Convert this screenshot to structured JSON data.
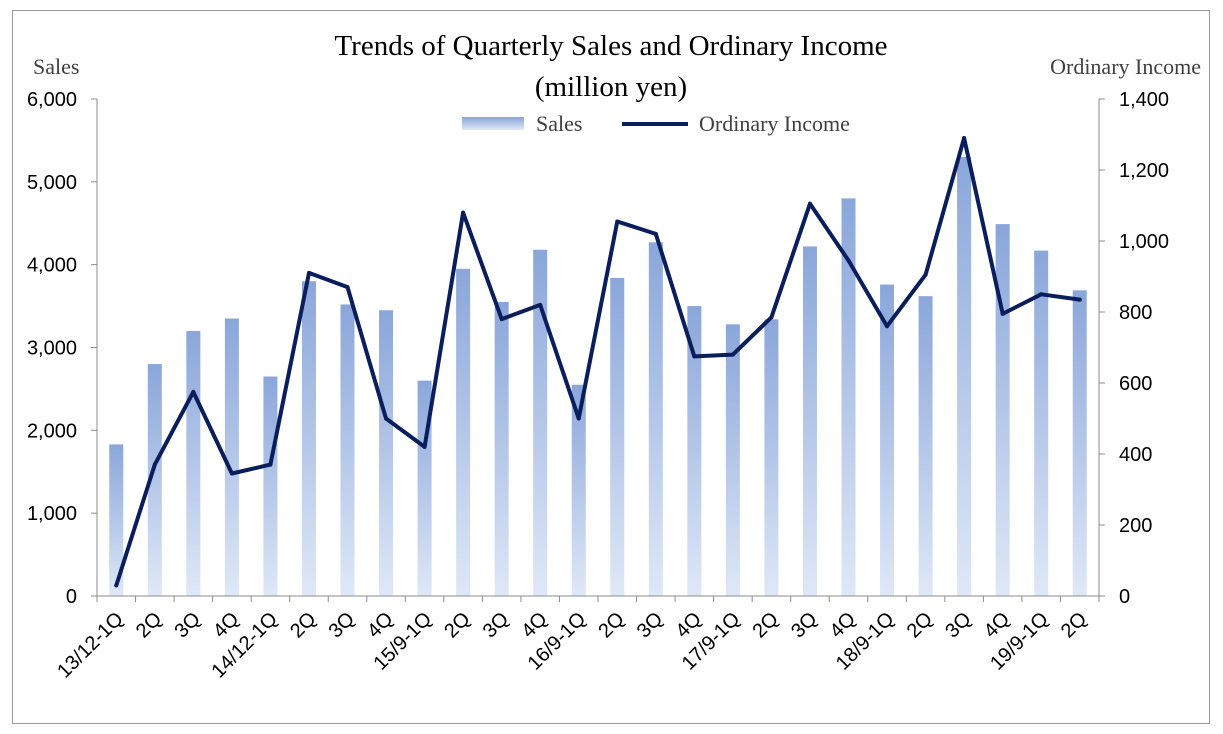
{
  "chart_data": {
    "type": "bar",
    "title": "Trends of Quarterly Sales and Ordinary Income",
    "subtitle": "(million yen)",
    "ylabel": "Sales",
    "y2label": "Ordinary Income",
    "ylim": [
      0,
      6000
    ],
    "y2lim": [
      0,
      1400
    ],
    "yticks": [
      "0",
      "1,000",
      "2,000",
      "3,000",
      "4,000",
      "5,000",
      "6,000"
    ],
    "y2ticks": [
      "0",
      "200",
      "400",
      "600",
      "800",
      "1,000",
      "1,200",
      "1,400"
    ],
    "legend_position": "top-center",
    "categories": [
      "13/12-1Q",
      "2Q",
      "3Q",
      "4Q",
      "14/12-1Q",
      "2Q",
      "3Q",
      "4Q",
      "15/9-1Q",
      "2Q",
      "3Q",
      "4Q",
      "16/9-1Q",
      "2Q",
      "3Q",
      "4Q",
      "17/9-1Q",
      "2Q",
      "3Q",
      "4Q",
      "18/9-1Q",
      "2Q",
      "3Q",
      "4Q",
      "19/9-1Q",
      "2Q"
    ],
    "series": [
      {
        "name": "Sales",
        "type": "bar",
        "axis": "left",
        "color": "#8faadc",
        "values": [
          1830,
          2800,
          3200,
          3350,
          2650,
          3800,
          3520,
          3450,
          2600,
          3950,
          3550,
          4180,
          2550,
          3840,
          4270,
          3500,
          3280,
          3340,
          4220,
          4800,
          3760,
          3620,
          5300,
          4490,
          4170,
          3690
        ]
      },
      {
        "name": "Ordinary Income",
        "type": "line",
        "axis": "right",
        "color": "#0a1e5c",
        "values": [
          30,
          370,
          575,
          345,
          370,
          910,
          870,
          500,
          420,
          1080,
          780,
          820,
          500,
          1055,
          1020,
          675,
          680,
          785,
          1105,
          945,
          760,
          905,
          1290,
          795,
          850,
          835
        ]
      }
    ]
  }
}
